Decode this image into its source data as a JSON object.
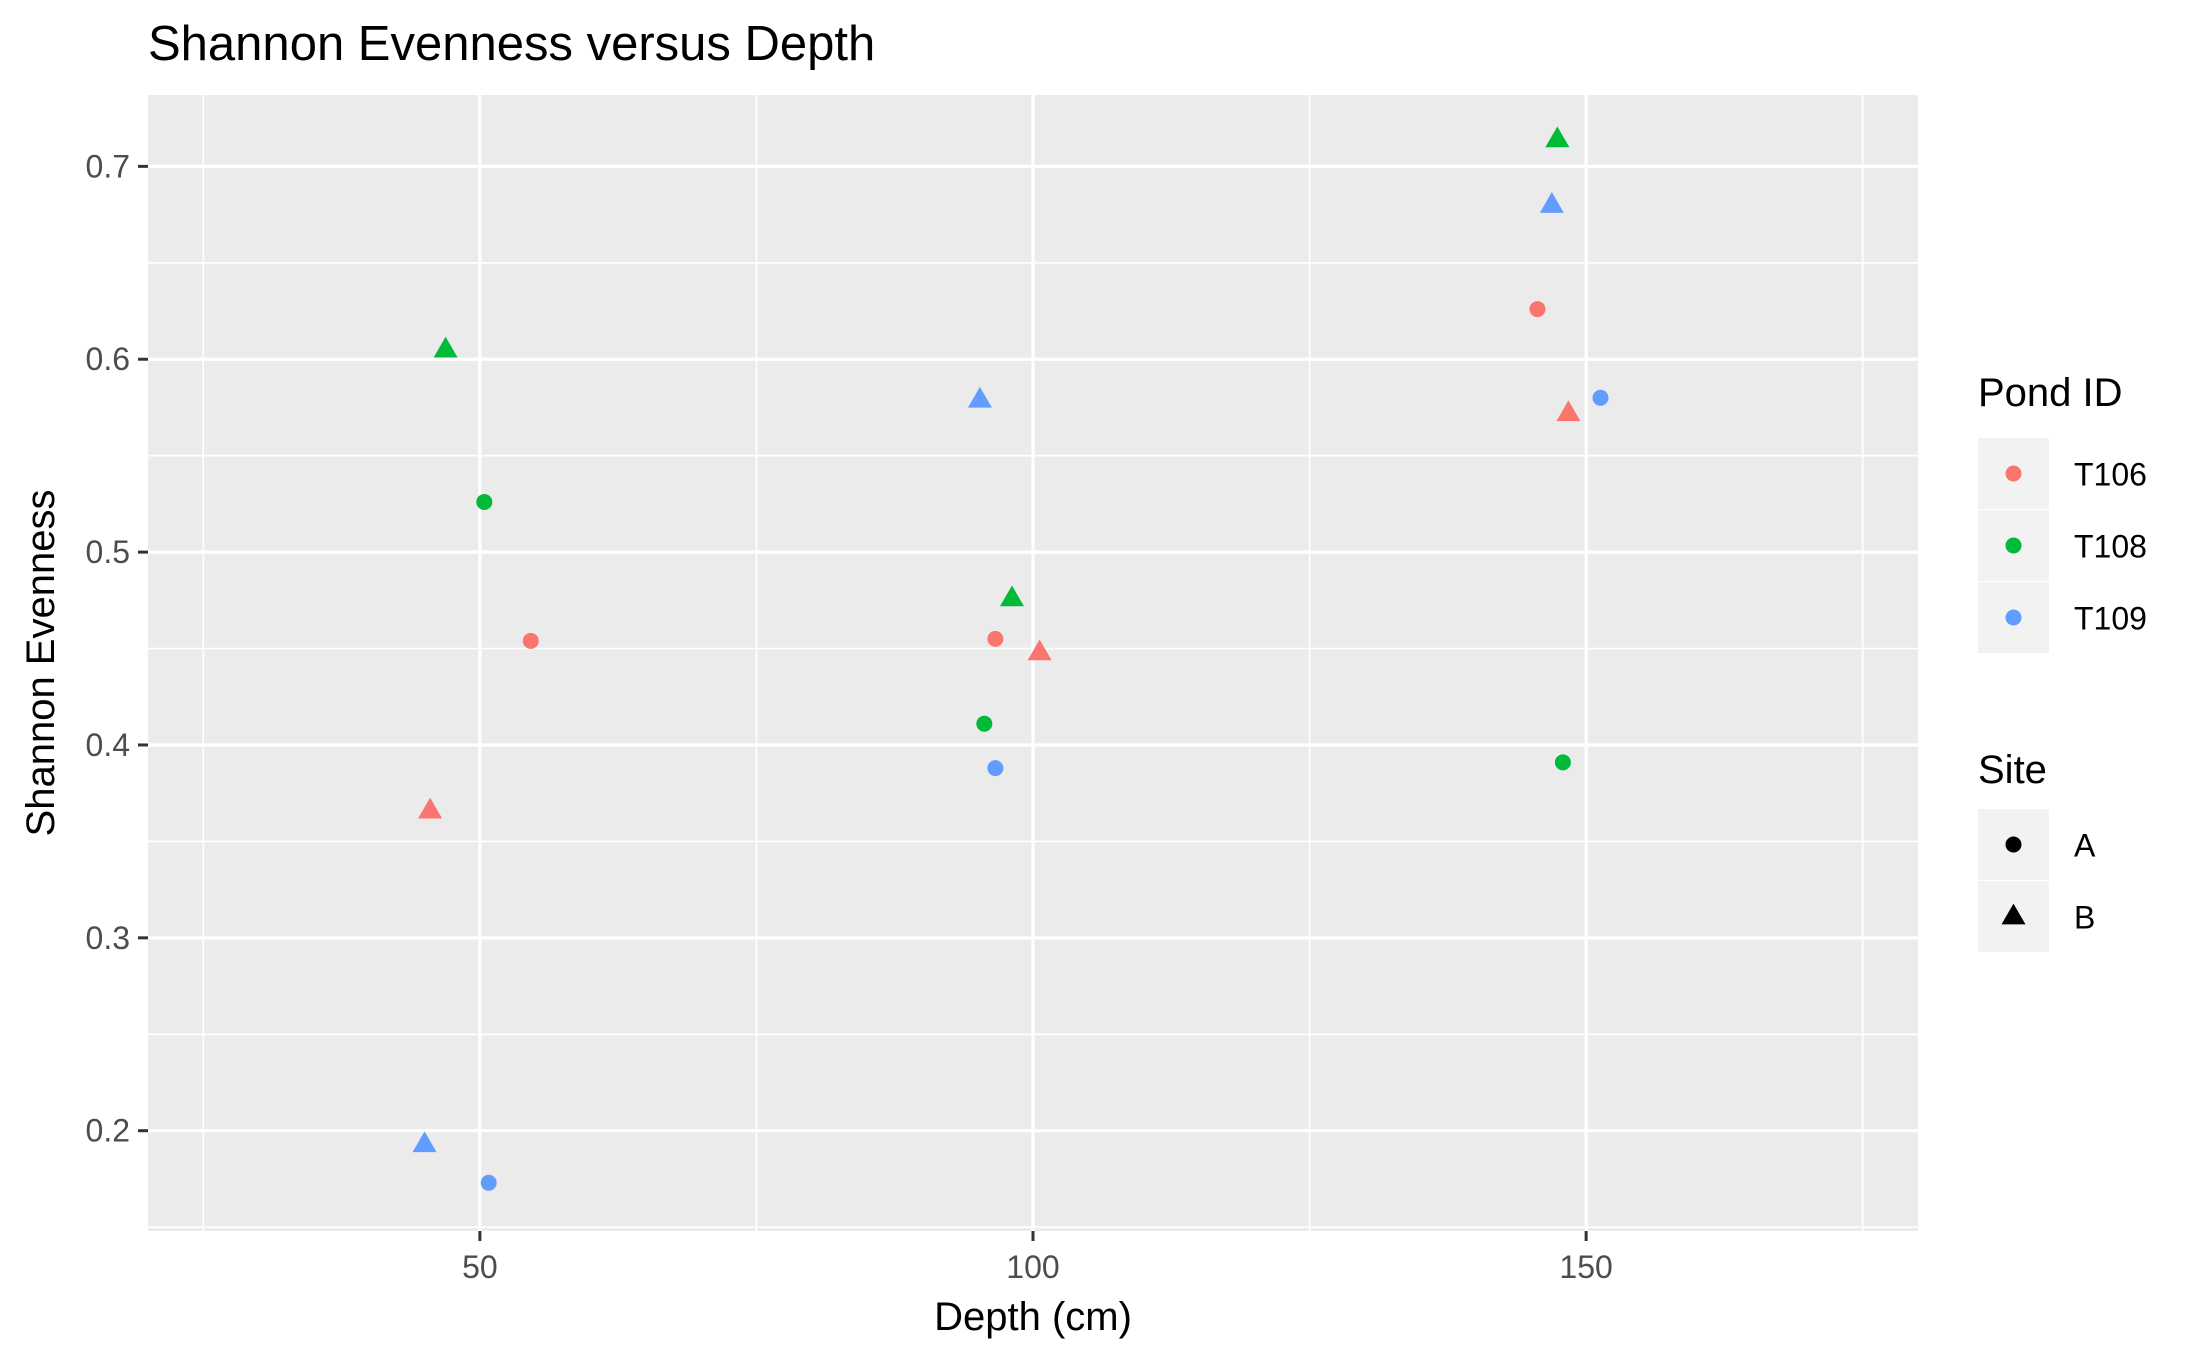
{
  "chart_data": {
    "type": "scatter",
    "title": "Shannon Evenness versus Depth",
    "xlabel": "Depth (cm)",
    "ylabel": "Shannon Evenness",
    "xlim": [
      20,
      180
    ],
    "ylim": [
      0.148,
      0.737
    ],
    "x_ticks": [
      50,
      100,
      150
    ],
    "x_tick_labels": [
      "50",
      "100",
      "150"
    ],
    "y_ticks": [
      0.2,
      0.3,
      0.4,
      0.5,
      0.6,
      0.7
    ],
    "y_tick_labels": [
      "0.2",
      "0.3",
      "0.4",
      "0.5",
      "0.6",
      "0.7"
    ],
    "grid": true,
    "legend_placement": "right",
    "legends": [
      {
        "title": "Pond ID",
        "kind": "color",
        "entries": [
          {
            "label": "T106",
            "color": "#F8766D"
          },
          {
            "label": "T108",
            "color": "#00BA38"
          },
          {
            "label": "T109",
            "color": "#619CFF"
          }
        ]
      },
      {
        "title": "Site",
        "kind": "shape",
        "entries": [
          {
            "label": "A",
            "shape": "circle"
          },
          {
            "label": "B",
            "shape": "triangle"
          }
        ]
      }
    ],
    "points": [
      {
        "x": 45.5,
        "y": 0.366,
        "pond": "T106",
        "site": "B"
      },
      {
        "x": 54.6,
        "y": 0.454,
        "pond": "T106",
        "site": "A"
      },
      {
        "x": 96.6,
        "y": 0.455,
        "pond": "T106",
        "site": "A"
      },
      {
        "x": 100.6,
        "y": 0.448,
        "pond": "T106",
        "site": "B"
      },
      {
        "x": 145.6,
        "y": 0.626,
        "pond": "T106",
        "site": "A"
      },
      {
        "x": 148.4,
        "y": 0.572,
        "pond": "T106",
        "site": "B"
      },
      {
        "x": 46.9,
        "y": 0.605,
        "pond": "T108",
        "site": "B"
      },
      {
        "x": 50.4,
        "y": 0.526,
        "pond": "T108",
        "site": "A"
      },
      {
        "x": 95.6,
        "y": 0.411,
        "pond": "T108",
        "site": "A"
      },
      {
        "x": 98.1,
        "y": 0.476,
        "pond": "T108",
        "site": "B"
      },
      {
        "x": 147.4,
        "y": 0.714,
        "pond": "T108",
        "site": "B"
      },
      {
        "x": 147.9,
        "y": 0.391,
        "pond": "T108",
        "site": "A"
      },
      {
        "x": 45.0,
        "y": 0.193,
        "pond": "T109",
        "site": "B"
      },
      {
        "x": 50.8,
        "y": 0.173,
        "pond": "T109",
        "site": "A"
      },
      {
        "x": 95.2,
        "y": 0.579,
        "pond": "T109",
        "site": "B"
      },
      {
        "x": 96.6,
        "y": 0.388,
        "pond": "T109",
        "site": "A"
      },
      {
        "x": 146.9,
        "y": 0.68,
        "pond": "T109",
        "site": "B"
      },
      {
        "x": 151.3,
        "y": 0.58,
        "pond": "T109",
        "site": "A"
      }
    ]
  }
}
